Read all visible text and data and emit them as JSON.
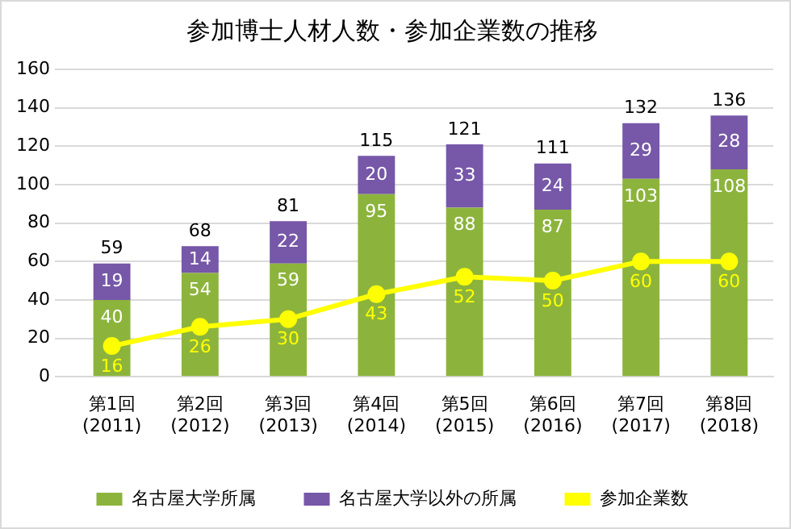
{
  "chart_data": {
    "type": "bar",
    "title": "参加博士人材人数・参加企業数の推移",
    "categories": [
      "第1回\n(2011)",
      "第2回\n(2012)",
      "第3回\n(2013)",
      "第4回\n(2014)",
      "第5回\n(2015)",
      "第6回\n(2016)",
      "第7回\n(2017)",
      "第8回\n(2018)"
    ],
    "stacked": true,
    "series": [
      {
        "name": "名古屋大学所属",
        "color": "#8cb43c",
        "values": [
          40,
          54,
          59,
          95,
          88,
          87,
          103,
          108
        ]
      },
      {
        "name": "名古屋大学以外の所属",
        "color": "#7657a8",
        "values": [
          19,
          14,
          22,
          20,
          33,
          24,
          29,
          28
        ]
      },
      {
        "name": "参加企業数",
        "type": "line",
        "color": "#ffff00",
        "values": [
          16,
          26,
          30,
          43,
          52,
          50,
          60,
          60
        ]
      }
    ],
    "totals": [
      "59",
      "68",
      "81",
      "115",
      "121",
      "111",
      "132",
      "136"
    ],
    "data_labels": true,
    "ylim": [
      0,
      160
    ],
    "yticks": [
      0,
      20,
      40,
      60,
      80,
      100,
      120,
      140,
      160
    ],
    "grid": "y",
    "legend": "bottom",
    "marker": "circle",
    "line_style": "solid"
  }
}
